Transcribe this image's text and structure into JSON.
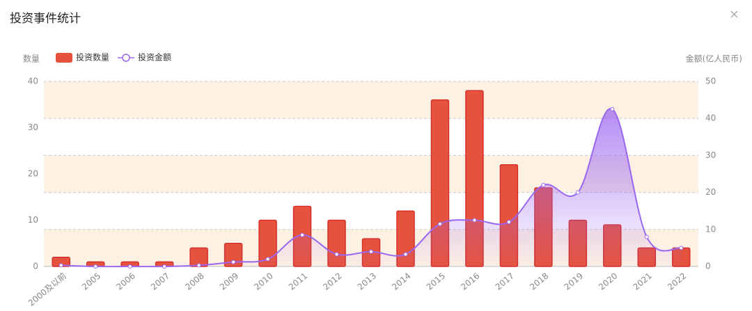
{
  "chart_data": {
    "type": "bar",
    "title": "投资事件统计",
    "y_label": "数量",
    "y2_label": "金额(亿人民币)",
    "categories": [
      "2000及以前",
      "2005",
      "2006",
      "2007",
      "2008",
      "2009",
      "2010",
      "2011",
      "2012",
      "2013",
      "2014",
      "2015",
      "2016",
      "2017",
      "2018",
      "2019",
      "2020",
      "2021",
      "2022"
    ],
    "series": [
      {
        "name": "投资数量",
        "type": "bar",
        "color": "#e5533f",
        "values": [
          2,
          1,
          1,
          1,
          4,
          5,
          10,
          13,
          10,
          6,
          12,
          36,
          38,
          22,
          17,
          10,
          9,
          4,
          4
        ]
      },
      {
        "name": "投资金额",
        "type": "line",
        "axis": "y2",
        "color": "#9b66f0",
        "values": [
          0.3,
          0,
          0,
          0,
          0.3,
          1.2,
          2,
          8.5,
          3.3,
          4,
          3.3,
          11.5,
          12.5,
          12,
          22,
          20,
          42.5,
          8,
          5
        ]
      }
    ],
    "ylim": [
      0,
      40
    ],
    "yticks": [
      0,
      10,
      20,
      30,
      40
    ],
    "y2lim": [
      0,
      50
    ],
    "y2ticks": [
      0,
      10,
      20,
      30,
      40,
      50
    ],
    "split_area": true,
    "legend": "top-left"
  }
}
